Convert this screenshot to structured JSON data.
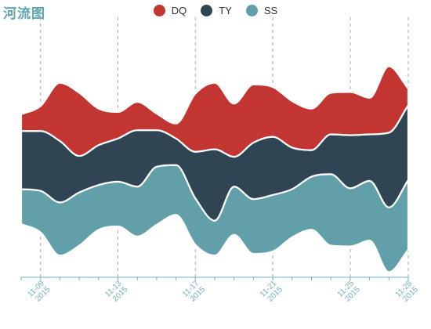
{
  "title": "河流图",
  "chart_data": {
    "type": "themeRiver",
    "title": "河流图",
    "x": [
      "2015/11/08",
      "2015/11/09",
      "2015/11/10",
      "2015/11/11",
      "2015/11/12",
      "2015/11/13",
      "2015/11/14",
      "2015/11/15",
      "2015/11/16",
      "2015/11/17",
      "2015/11/18",
      "2015/11/19",
      "2015/11/20",
      "2015/11/21",
      "2015/11/22",
      "2015/11/23",
      "2015/11/24",
      "2015/11/25",
      "2015/11/26",
      "2015/11/27",
      "2015/11/28"
    ],
    "tick_labels": [
      {
        "date": "2015/11/09",
        "label": "11-09\n2015"
      },
      {
        "date": "2015/11/13",
        "label": "11-13\n2015"
      },
      {
        "date": "2015/11/17",
        "label": "11-17\n2015"
      },
      {
        "date": "2015/11/21",
        "label": "11-21\n2015"
      },
      {
        "date": "2015/11/25",
        "label": "11-25\n2015"
      },
      {
        "date": "2015/11/28",
        "label": "11-28\n2015"
      }
    ],
    "series": [
      {
        "name": "DQ",
        "color": "#c23531",
        "values": [
          10,
          15,
          35,
          38,
          22,
          16,
          17,
          10,
          9,
          35,
          40,
          32,
          35,
          30,
          28,
          25,
          25,
          26,
          22,
          40,
          10
        ]
      },
      {
        "name": "TY",
        "color": "#2f4554",
        "values": [
          35,
          36,
          37,
          22,
          24,
          26,
          34,
          22,
          16,
          28,
          43,
          18,
          34,
          35,
          25,
          16,
          24,
          32,
          28,
          45,
          45
        ]
      },
      {
        "name": "SS",
        "color": "#61a0a8",
        "values": [
          21,
          25,
          32,
          32,
          27,
          27,
          30,
          35,
          30,
          28,
          21,
          29,
          33,
          34,
          29,
          32,
          43,
          35,
          36,
          39,
          42
        ]
      }
    ],
    "grid": false,
    "legend_position": "top-center"
  }
}
